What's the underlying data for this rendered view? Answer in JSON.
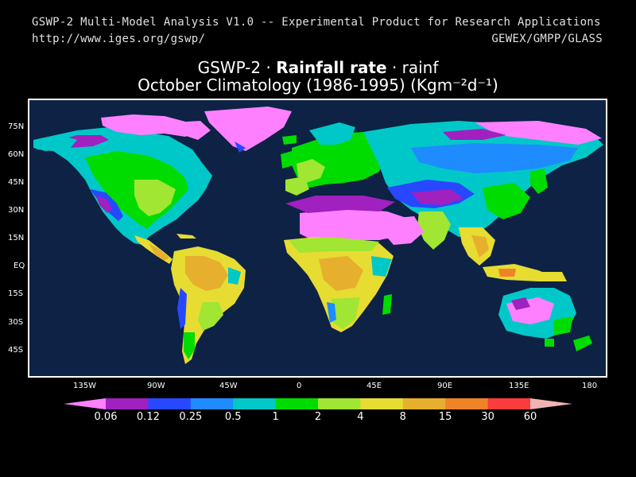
{
  "header": {
    "line1": "GSWP-2 Multi-Model Analysis V1.0 -- Experimental Product for Research Applications",
    "line2": "http://www.iges.org/gswp/",
    "right": "GEWEX/GMPP/GLASS"
  },
  "title": {
    "prefix": "GSWP-2 · ",
    "variable": "Rainfall rate",
    "suffix": " · rainf",
    "line2": "October Climatology (1986-1995) (Kgm⁻²d⁻¹)"
  },
  "map": {
    "ocean_color": "#0d2244",
    "lat_labels": [
      "75N",
      "60N",
      "45N",
      "30N",
      "15N",
      "EQ",
      "15S",
      "30S",
      "45S"
    ],
    "lon_labels": [
      "135W",
      "90W",
      "45W",
      "0",
      "45E",
      "90E",
      "135E",
      "180"
    ]
  },
  "legend": {
    "colors": [
      "#ff80ff",
      "#a020c0",
      "#2848ff",
      "#1e8cff",
      "#00c8c8",
      "#00dc00",
      "#a0e632",
      "#e6dc32",
      "#e6af2d",
      "#f08228",
      "#fa3c3c",
      "#f0b4b4"
    ],
    "labels": [
      "0.06",
      "0.12",
      "0.25",
      "0.5",
      "1",
      "2",
      "4",
      "8",
      "15",
      "30",
      "60"
    ]
  }
}
